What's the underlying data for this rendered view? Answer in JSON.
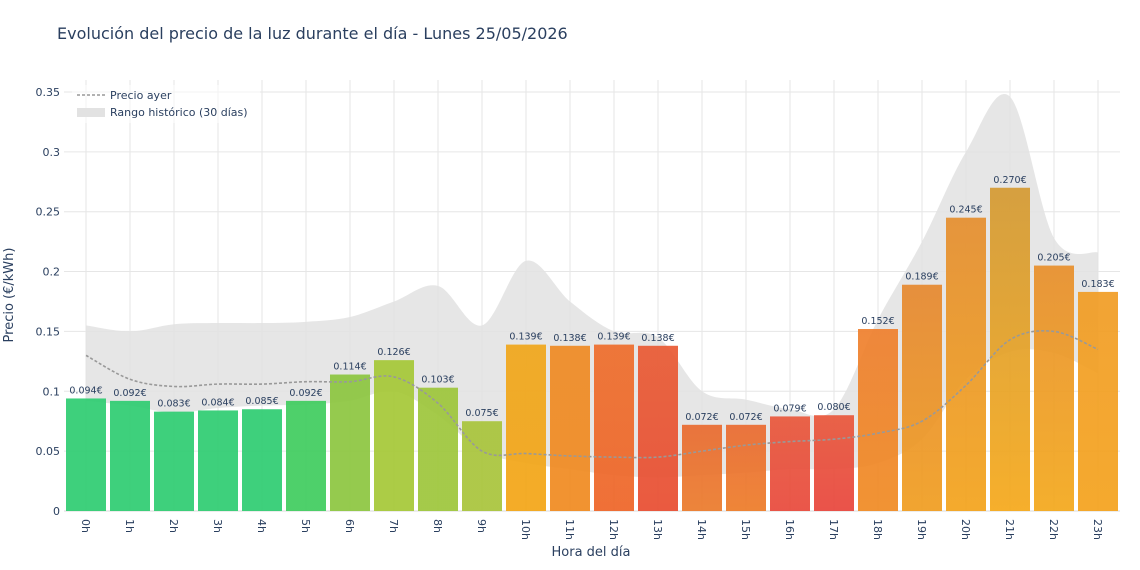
{
  "chart_data": {
    "type": "bar",
    "title": "Evolución del precio de la luz durante el día - Lunes 25/05/2026",
    "xlabel": "Hora del día",
    "ylabel": "Precio (€/kWh)",
    "ylim": [
      0,
      0.36
    ],
    "yticks": [
      0,
      0.05,
      0.1,
      0.15,
      0.2,
      0.25,
      0.3,
      0.35
    ],
    "ytick_labels": [
      "0",
      "0.05",
      "0.1",
      "0.15",
      "0.2",
      "0.25",
      "0.3",
      "0.35"
    ],
    "categories": [
      "0h",
      "1h",
      "2h",
      "3h",
      "4h",
      "5h",
      "6h",
      "7h",
      "8h",
      "9h",
      "10h",
      "11h",
      "12h",
      "13h",
      "14h",
      "15h",
      "16h",
      "17h",
      "18h",
      "19h",
      "20h",
      "21h",
      "22h",
      "23h"
    ],
    "values": [
      0.094,
      0.092,
      0.083,
      0.084,
      0.085,
      0.092,
      0.114,
      0.126,
      0.103,
      0.075,
      0.139,
      0.138,
      0.139,
      0.138,
      0.072,
      0.072,
      0.079,
      0.08,
      0.152,
      0.189,
      0.245,
      0.27,
      0.205,
      0.183
    ],
    "value_labels": [
      "0.094€",
      "0.092€",
      "0.083€",
      "0.084€",
      "0.085€",
      "0.092€",
      "0.114€",
      "0.126€",
      "0.103€",
      "0.075€",
      "0.139€",
      "0.138€",
      "0.139€",
      "0.138€",
      "0.072€",
      "0.072€",
      "0.079€",
      "0.080€",
      "0.152€",
      "0.189€",
      "0.245€",
      "0.270€",
      "0.205€",
      "0.183€"
    ],
    "bar_colors_top": [
      "#2ecc71",
      "#2ecc71",
      "#2ecc71",
      "#2ecc71",
      "#2ecc71",
      "#3fcc5e",
      "#8cc63f",
      "#a5c836",
      "#9dc63a",
      "#a8c43a",
      "#f0a61a",
      "#ef8a23",
      "#ee6d2b",
      "#e95a33",
      "#e96a2f",
      "#ea6a30",
      "#e9573a",
      "#e9573a",
      "#ef7f2d",
      "#e6882f",
      "#e58e2e",
      "#d49a32",
      "#e88f2b",
      "#f19c24"
    ],
    "bar_colors_bottom": [
      "#2ecc71",
      "#2ecc71",
      "#2ecc71",
      "#2ecc71",
      "#2ecc71",
      "#3fcc5e",
      "#8cc63f",
      "#a5c836",
      "#9dc63a",
      "#a8c43a",
      "#f3a515",
      "#f08a1f",
      "#ee6426",
      "#e84c30",
      "#eb7a2a",
      "#ed7b27",
      "#e8483a",
      "#e8443b",
      "#f08a22",
      "#f09d1f",
      "#f3a31b",
      "#f5a81a",
      "#f3a81b",
      "#f4a21c"
    ],
    "series": [
      {
        "name": "Precio ayer",
        "values": [
          0.13,
          0.11,
          0.104,
          0.106,
          0.106,
          0.108,
          0.108,
          0.112,
          0.09,
          0.05,
          0.048,
          0.046,
          0.045,
          0.045,
          0.05,
          0.055,
          0.058,
          0.06,
          0.065,
          0.075,
          0.105,
          0.143,
          0.15,
          0.135
        ]
      },
      {
        "name": "Rango histórico (30 días)",
        "upper": [
          0.155,
          0.15,
          0.156,
          0.157,
          0.157,
          0.158,
          0.162,
          0.175,
          0.188,
          0.155,
          0.209,
          0.175,
          0.15,
          0.145,
          0.1,
          0.093,
          0.085,
          0.085,
          0.16,
          0.225,
          0.3,
          0.346,
          0.228,
          0.216
        ],
        "lower": [
          0.092,
          0.088,
          0.082,
          0.086,
          0.088,
          0.089,
          0.092,
          0.1,
          0.08,
          0.05,
          0.04,
          0.035,
          0.03,
          0.028,
          0.03,
          0.032,
          0.035,
          0.035,
          0.04,
          0.06,
          0.11,
          0.133,
          0.132,
          0.115
        ]
      }
    ],
    "colors": {
      "previous_line": "#999999",
      "range_fill": "#e2e2e2",
      "grid": "#e6e6e6"
    },
    "grid": true,
    "legend": "top-left"
  }
}
